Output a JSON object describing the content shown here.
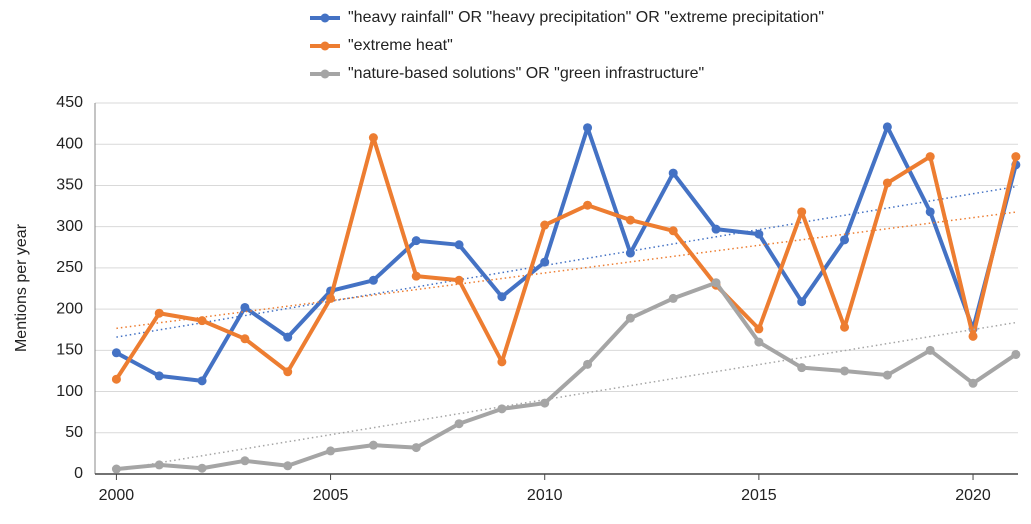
{
  "chart_data": {
    "type": "line",
    "ylabel": "Mentions per year",
    "x": [
      2000,
      2001,
      2002,
      2003,
      2004,
      2005,
      2006,
      2007,
      2008,
      2009,
      2010,
      2011,
      2012,
      2013,
      2014,
      2015,
      2016,
      2017,
      2018,
      2019,
      2020,
      2021
    ],
    "series": [
      {
        "name": "\"heavy rainfall\" OR \"heavy precipitation\" OR \"extreme precipitation\"",
        "color": "#4472c4",
        "values": [
          147,
          119,
          113,
          202,
          166,
          222,
          235,
          283,
          278,
          215,
          257,
          420,
          268,
          365,
          297,
          291,
          209,
          284,
          421,
          318,
          176,
          375
        ]
      },
      {
        "name": "\"extreme heat\"",
        "color": "#ed7d31",
        "values": [
          115,
          195,
          186,
          164,
          124,
          213,
          408,
          240,
          235,
          136,
          302,
          326,
          308,
          295,
          229,
          176,
          318,
          178,
          353,
          385,
          167,
          385
        ]
      },
      {
        "name": "\"nature-based solutions\" OR \"green infrastructure\"",
        "color": "#a5a5a5",
        "values": [
          6,
          11,
          7,
          16,
          10,
          28,
          35,
          32,
          61,
          79,
          86,
          133,
          189,
          213,
          232,
          160,
          129,
          125,
          120,
          150,
          110,
          145
        ]
      }
    ],
    "xlim": [
      1999.5,
      2021.05
    ],
    "xticks": [
      2000,
      2005,
      2010,
      2015,
      2020
    ],
    "ylim": [
      0,
      450
    ],
    "yticks": [
      0,
      50,
      100,
      150,
      200,
      250,
      300,
      350,
      400,
      450
    ],
    "grid": true,
    "trendline": true,
    "legend": "top"
  }
}
